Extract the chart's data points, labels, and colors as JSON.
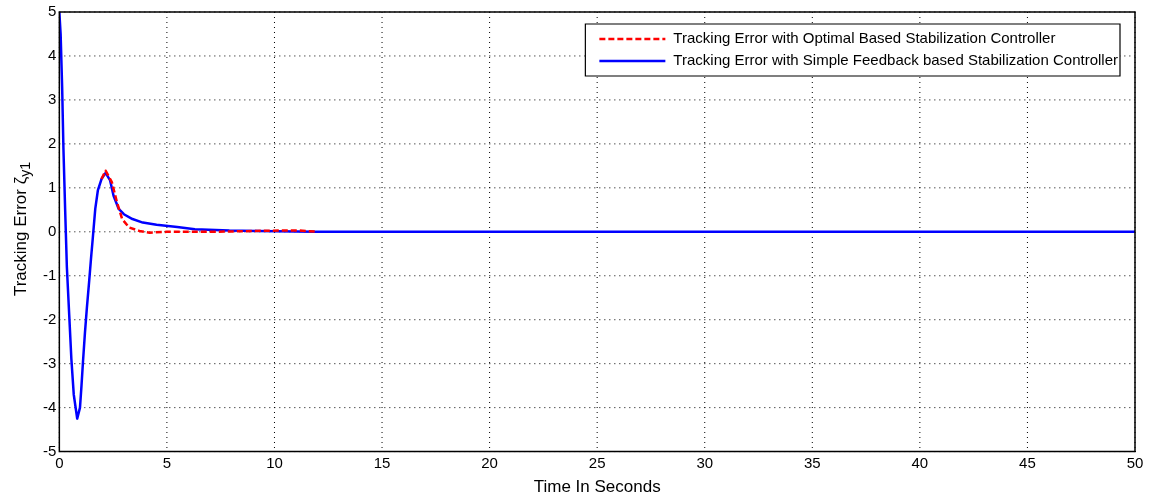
{
  "chart_data": {
    "type": "line",
    "xlabel": "Time In Seconds",
    "ylabel": "Tracking Error ζ$_{y1}$",
    "xlim": [
      0,
      50
    ],
    "xticks": [
      0,
      5,
      10,
      15,
      20,
      25,
      30,
      35,
      40,
      45,
      50
    ],
    "ylim": [
      -5,
      5
    ],
    "yticks": [
      -5,
      -4,
      -3,
      -2,
      -1,
      0,
      1,
      2,
      3,
      4,
      5
    ],
    "grid": true,
    "legend": "top right",
    "marker": "none",
    "series": [
      {
        "name": "Tracking Error with Optimal Based Stabilization Controller",
        "color": "#ff0000",
        "line_style": "dashed",
        "x": [
          1.96,
          2.15,
          2.44,
          2.68,
          2.92,
          3.24,
          3.72,
          4.2,
          5.0,
          7.1,
          10.3,
          11.1,
          12
        ],
        "values": [
          1.2,
          1.39,
          1.13,
          0.67,
          0.29,
          0.1,
          0.02,
          -0.02,
          0,
          0,
          0.03,
          0.03,
          0
        ]
      },
      {
        "name": "Tracking Error with Simple Feedback based Stabilization Controller",
        "color": "#0000ff",
        "line_style": "solid",
        "x": [
          0,
          0.06,
          0.13,
          0.19,
          0.27,
          0.35,
          0.46,
          0.56,
          0.67,
          0.83,
          0.96,
          1.03,
          1.1,
          1.19,
          1.28,
          1.38,
          1.47,
          1.55,
          1.67,
          1.79,
          1.96,
          2.15,
          2.36,
          2.52,
          2.76,
          3.0,
          3.4,
          3.88,
          4.52,
          5.48,
          6.3,
          7.9,
          9.2,
          11.9,
          50
        ],
        "values": [
          5,
          4.5,
          3.3,
          1.9,
          0.5,
          -0.8,
          -1.9,
          -2.9,
          -3.7,
          -4.25,
          -4.0,
          -3.5,
          -2.95,
          -2.3,
          -1.73,
          -1.16,
          -0.62,
          -0.17,
          0.52,
          0.94,
          1.2,
          1.34,
          1.17,
          0.82,
          0.52,
          0.4,
          0.29,
          0.21,
          0.16,
          0.11,
          0.06,
          0.03,
          0.02,
          0,
          0
        ]
      }
    ]
  }
}
